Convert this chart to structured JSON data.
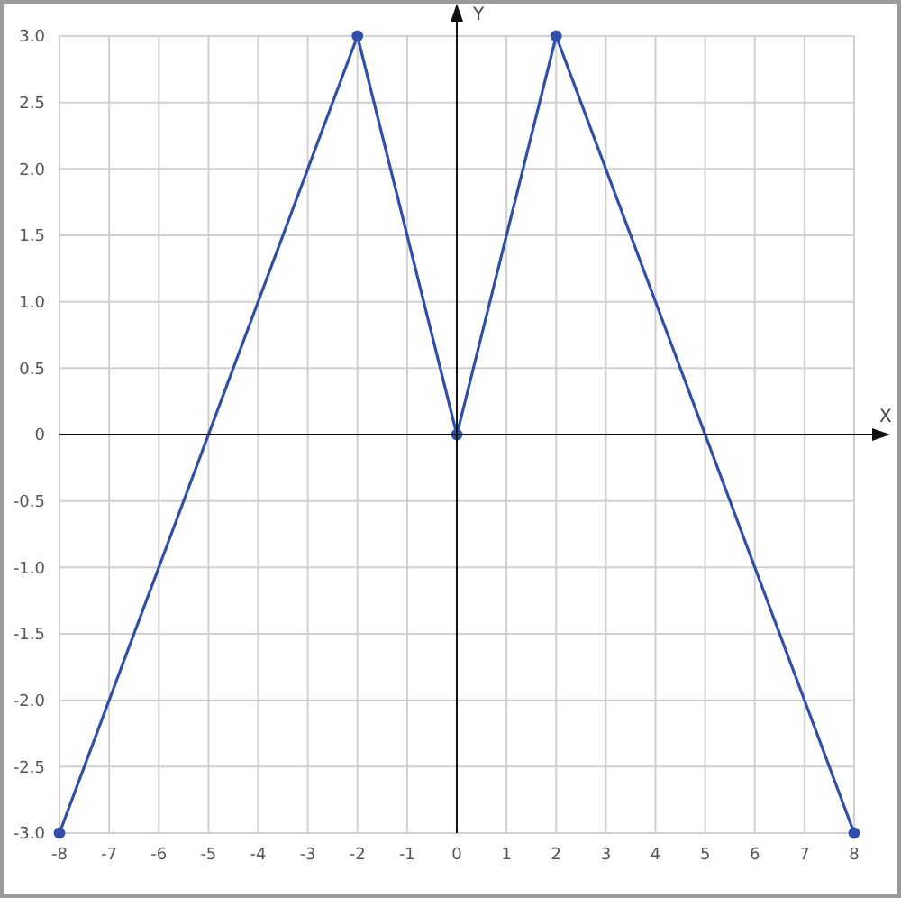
{
  "chart_data": {
    "type": "line",
    "xlabel": "X",
    "ylabel": "Y",
    "x": [
      -8,
      -2,
      0,
      2,
      8
    ],
    "series": [
      {
        "color": "#2f4fa8",
        "values": [
          -3,
          3,
          0,
          3,
          -3
        ]
      }
    ],
    "xlim": [
      -8,
      8
    ],
    "xticks": [
      -8,
      -7,
      -6,
      -5,
      -4,
      -3,
      -2,
      -1,
      0,
      1,
      2,
      3,
      4,
      5,
      6,
      7,
      8
    ],
    "ylim": [
      -3,
      3
    ],
    "yticks": [
      {
        "value": -3,
        "label": "-3.0"
      },
      {
        "value": -2.5,
        "label": "-2.5"
      },
      {
        "value": -2,
        "label": "-2.0"
      },
      {
        "value": -1.5,
        "label": "-1.5"
      },
      {
        "value": -1,
        "label": "-1.0"
      },
      {
        "value": -0.5,
        "label": "-0.5"
      },
      0,
      0.5,
      {
        "value": 1,
        "label": "1.0"
      },
      1.5,
      {
        "value": 2,
        "label": "2.0"
      },
      2.5,
      {
        "value": 3,
        "label": "3.0"
      }
    ],
    "grid": true,
    "marker": "circle",
    "line_style": "solid",
    "legend": false
  }
}
